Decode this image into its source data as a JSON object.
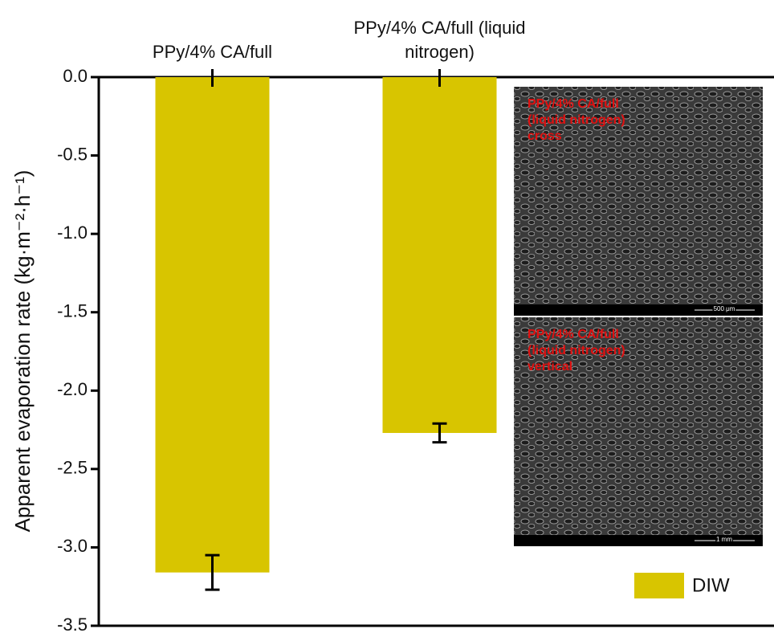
{
  "chart_data": {
    "type": "bar",
    "y_label": "Apparent evaporation rate (kg·m⁻²·h⁻¹)",
    "categories": [
      "PPy/4% CA/full",
      "PPy/4% CA/full (liquid nitrogen)"
    ],
    "series": [
      {
        "name": "DIW",
        "color": "#d8c500",
        "values": [
          -3.16,
          -2.27
        ],
        "errors": [
          0.11,
          0.06
        ]
      }
    ],
    "ylim": [
      0,
      -3.5
    ],
    "yticks": [
      {
        "value": 0,
        "label": "0.0"
      },
      -0.5,
      {
        "value": -1,
        "label": "-1.0"
      },
      -1.5,
      {
        "value": -2,
        "label": "-2.0"
      },
      -2.5,
      {
        "value": -3,
        "label": "-3.0"
      },
      -3.5
    ],
    "legend": "lower right",
    "insets": [
      {
        "lines": [
          "PPy/4% CA/full",
          "(liquid nitrogen)",
          "cross"
        ],
        "scale": "500 μm"
      },
      {
        "lines": [
          "PPy/4% CA/full",
          "(liquid nitrogen)",
          "vertical"
        ],
        "scale": "1 mm"
      }
    ]
  }
}
